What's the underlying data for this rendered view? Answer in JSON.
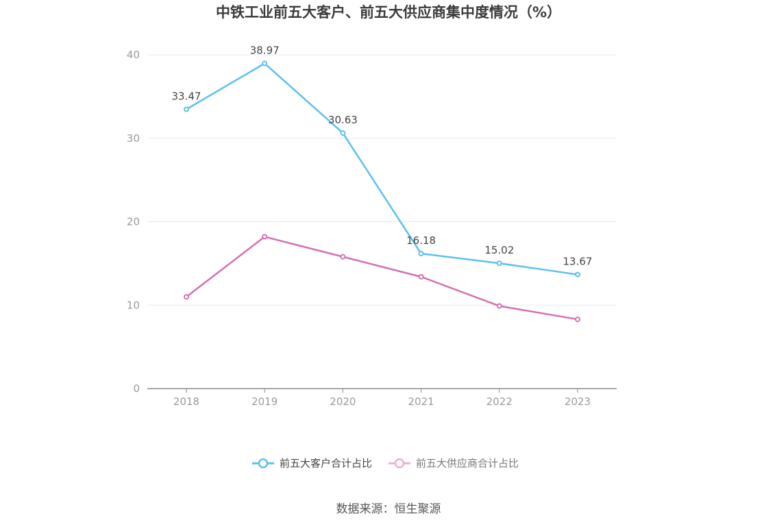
{
  "chart_data": {
    "type": "line",
    "title": "中铁工业前五大客户、前五大供应商集中度情况（%）",
    "source": "数据来源：恒生聚源",
    "categories": [
      "2018",
      "2019",
      "2020",
      "2021",
      "2022",
      "2023"
    ],
    "ylim": [
      0,
      40
    ],
    "yticks": [
      "0",
      "10",
      "20",
      "30",
      "40"
    ],
    "grid": true,
    "legend_position": "bottom",
    "series": [
      {
        "name": "前五大客户合计占比",
        "color": "#5bc0f0",
        "values": [
          33.47,
          38.97,
          30.63,
          16.18,
          15.02,
          13.67
        ],
        "labels": [
          "33.47",
          "38.97",
          "30.63",
          "16.18",
          "15.02",
          "13.67"
        ]
      },
      {
        "name": "前五大供应商合计占比",
        "color": "#d36fb4",
        "legend_color": "#eab0d6",
        "values": [
          11.0,
          18.2,
          15.8,
          13.4,
          9.9,
          8.3
        ]
      }
    ]
  }
}
